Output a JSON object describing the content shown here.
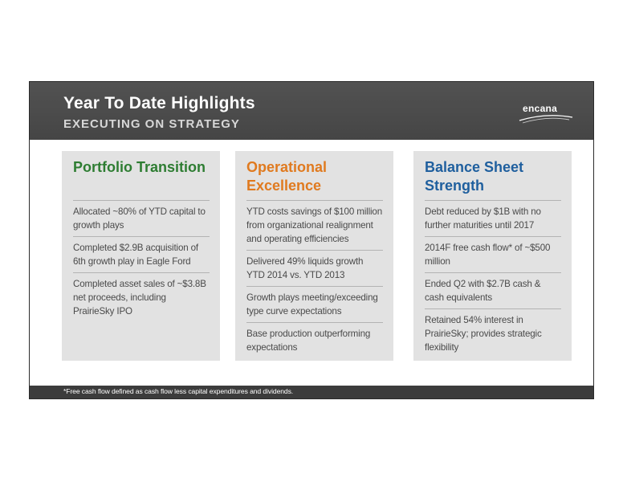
{
  "header": {
    "title": "Year To Date Highlights",
    "subtitle": "EXECUTING ON STRATEGY",
    "logo_text": "encana"
  },
  "panels": [
    {
      "title": "Portfolio Transition",
      "color": "#2e7d32",
      "items": [
        "Allocated ~80% of YTD capital to growth plays",
        "Completed $2.9B acquisition of 6th growth play in Eagle Ford",
        "Completed asset sales of ~$3.8B net proceeds, including PrairieSky IPO"
      ]
    },
    {
      "title": "Operational Excellence",
      "color": "#e07a1f",
      "items": [
        "YTD costs savings of $100 million from organizational realignment and operating efficiencies",
        "Delivered 49% liquids growth YTD 2014 vs. YTD 2013",
        "Growth plays meeting/exceeding type curve expectations",
        "Base production outperforming expectations"
      ]
    },
    {
      "title": "Balance Sheet Strength",
      "color": "#1f5f9e",
      "items": [
        "Debt reduced by $1B with no further maturities until 2017",
        "2014F free cash flow* of ~$500 million",
        "Ended Q2 with $2.7B cash & cash equivalents",
        "Retained 54% interest in PrairieSky; provides strategic flexibility"
      ]
    }
  ],
  "footer": {
    "footnote": "*Free cash flow defined as cash flow less capital expenditures and dividends."
  }
}
